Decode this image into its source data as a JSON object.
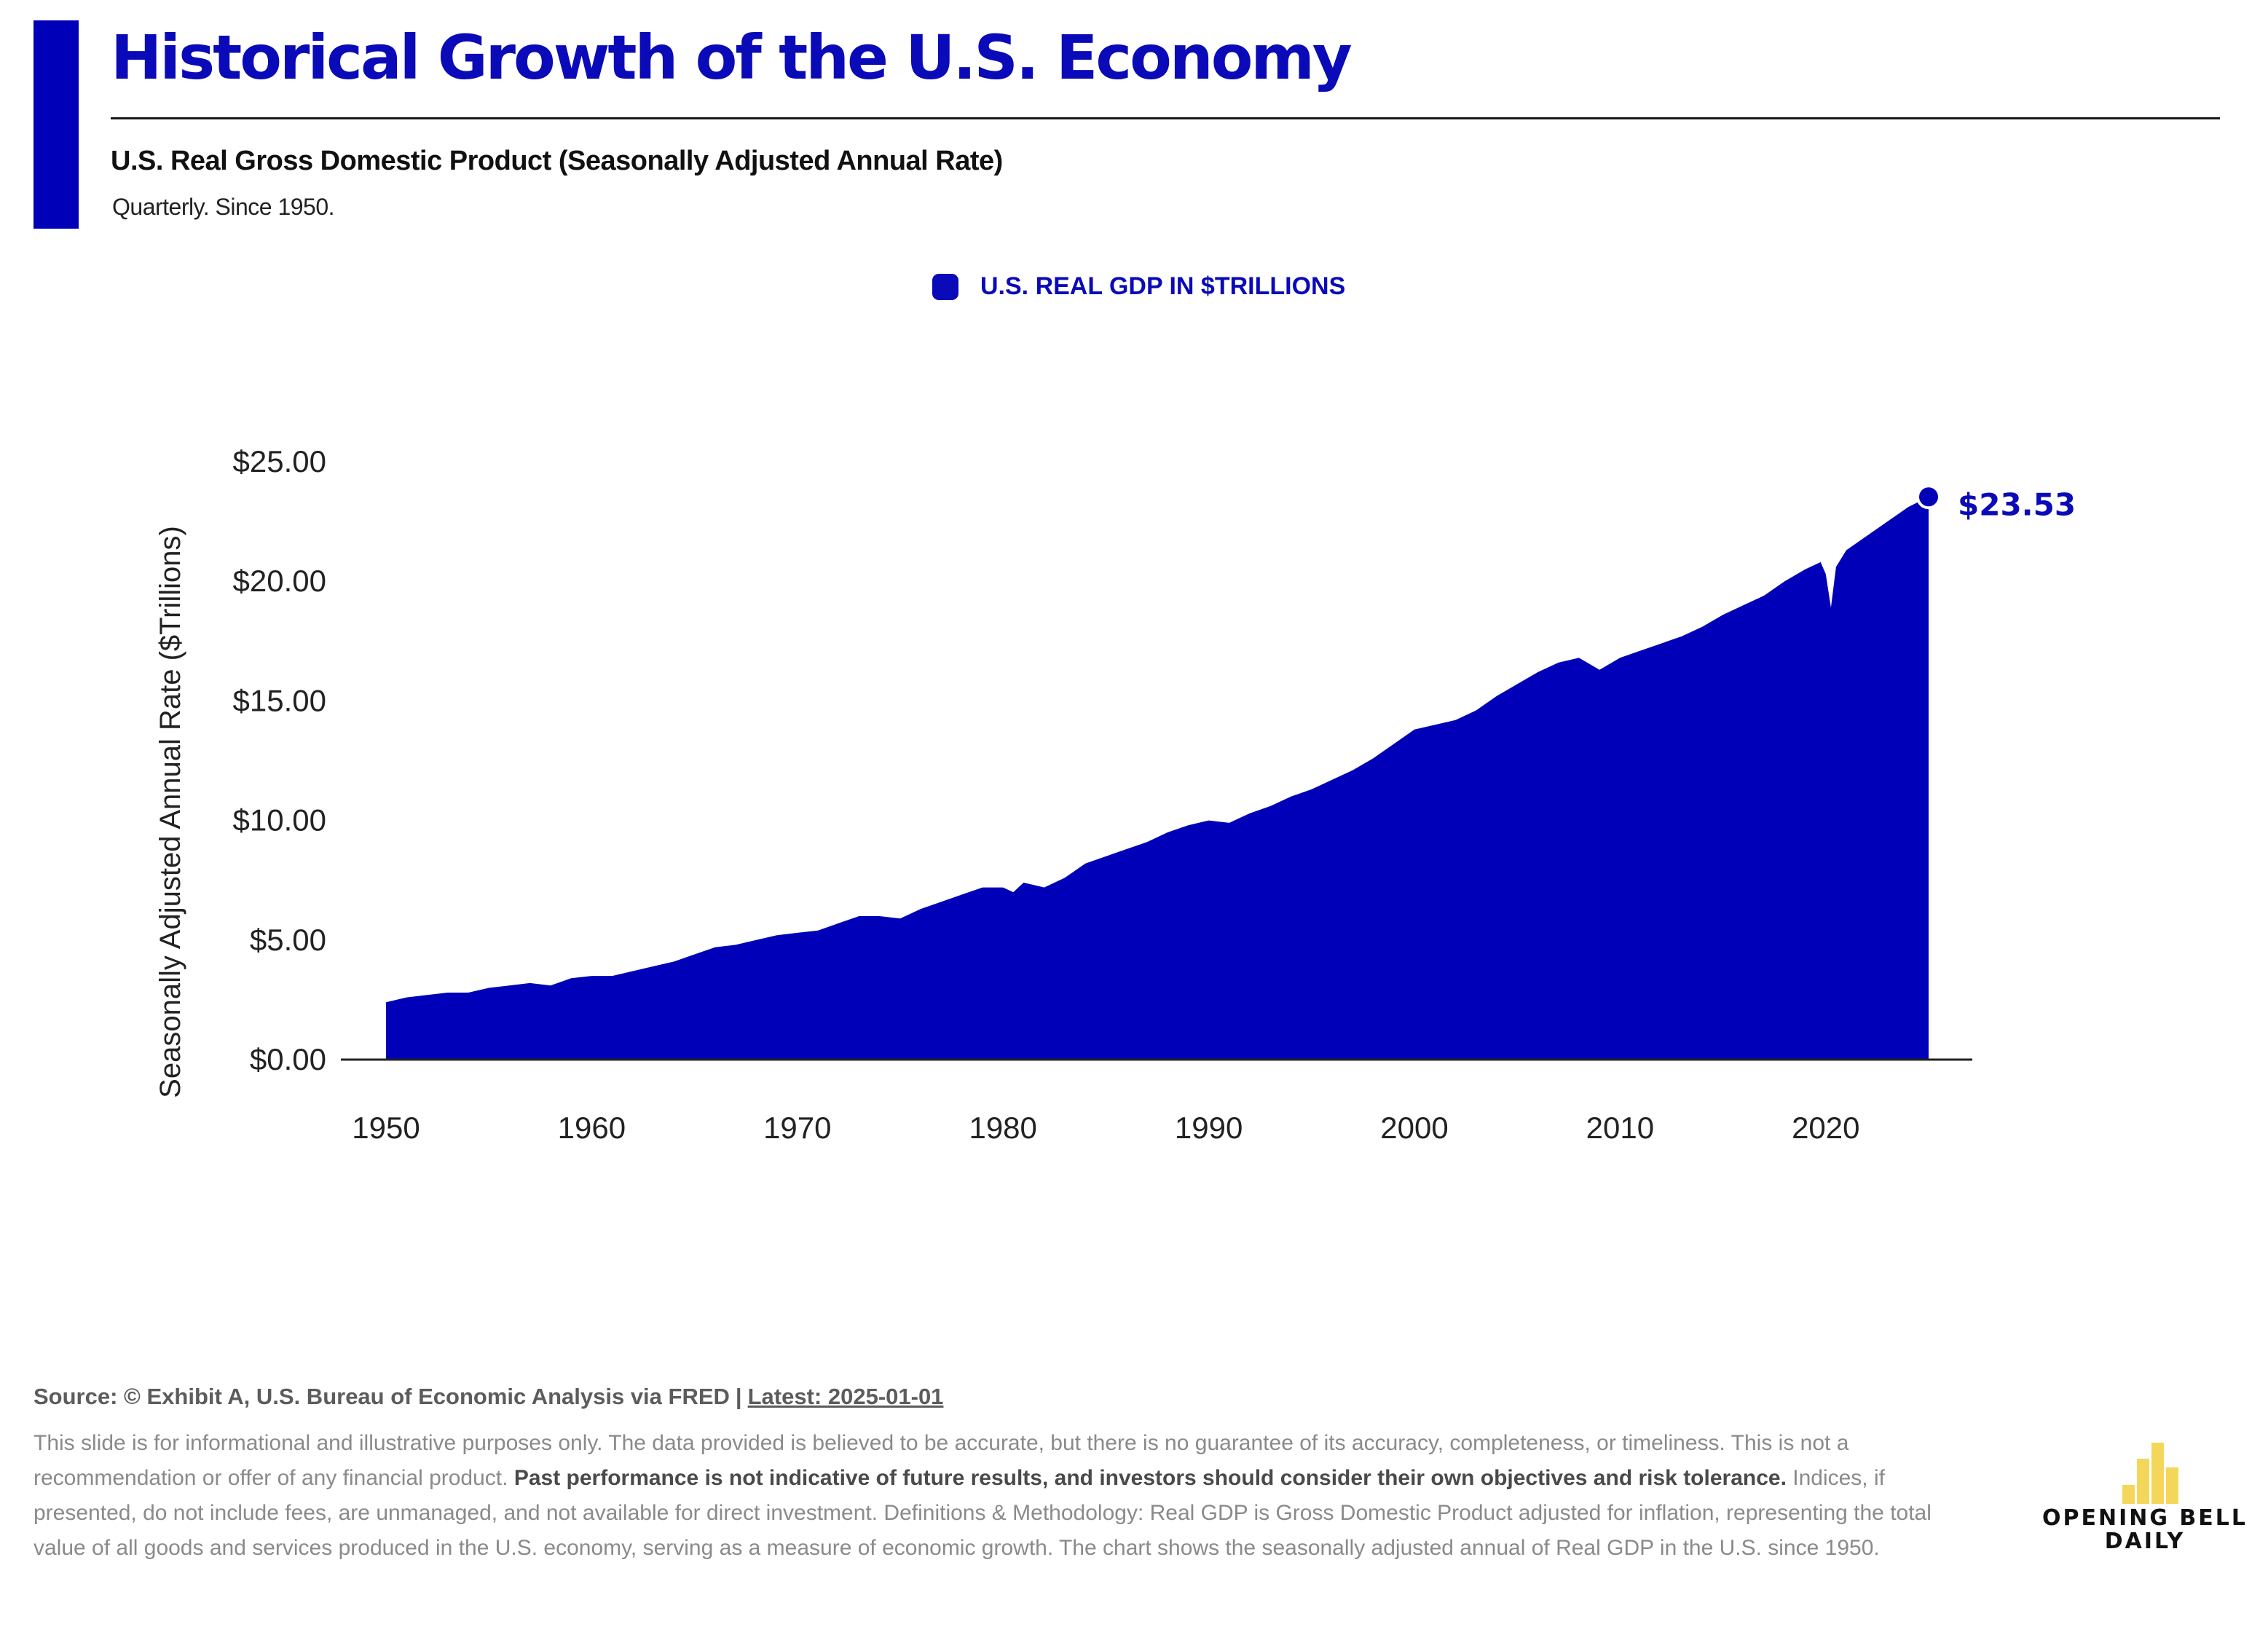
{
  "header": {
    "title": "Historical Growth of the U.S. Economy",
    "subtitle": "U.S. Real Gross Domestic Product (Seasonally Adjusted Annual Rate)",
    "note": "Quarterly. Since 1950."
  },
  "legend": {
    "label": "U.S. REAL GDP IN $TRILLIONS"
  },
  "colors": {
    "accent": "#0a0ab8",
    "area": "#0000b8",
    "logo": "#f4d75a"
  },
  "chart_data": {
    "type": "area",
    "ylabel": "Seasonally Adjusted Annual Rate ($Trillions)",
    "ylim": [
      0,
      25
    ],
    "y_ticks": [
      0,
      5,
      10,
      15,
      20,
      25
    ],
    "y_tick_labels": [
      "$0.00",
      "$5.00",
      "$10.00",
      "$15.00",
      "$20.00",
      "$25.00"
    ],
    "xlim": [
      1950,
      2025
    ],
    "x_ticks": [
      1950,
      1960,
      1970,
      1980,
      1990,
      2000,
      2010,
      2020
    ],
    "x_tick_labels": [
      "1950",
      "1960",
      "1970",
      "1980",
      "1990",
      "2000",
      "2010",
      "2020"
    ],
    "grid": false,
    "legend_position": "top-center",
    "series": [
      {
        "name": "U.S. REAL GDP IN $TRILLIONS",
        "x": [
          1950,
          1951,
          1952,
          1953,
          1954,
          1955,
          1956,
          1957,
          1958,
          1959,
          1960,
          1961,
          1962,
          1963,
          1964,
          1965,
          1966,
          1967,
          1968,
          1969,
          1970,
          1971,
          1972,
          1973,
          1974,
          1975,
          1976,
          1977,
          1978,
          1979,
          1980,
          1980.5,
          1981,
          1981.5,
          1982,
          1983,
          1984,
          1985,
          1986,
          1987,
          1988,
          1989,
          1990,
          1991,
          1992,
          1993,
          1994,
          1995,
          1996,
          1997,
          1998,
          1999,
          2000,
          2001,
          2002,
          2003,
          2004,
          2005,
          2006,
          2007,
          2008,
          2009,
          2010,
          2011,
          2012,
          2013,
          2014,
          2015,
          2016,
          2017,
          2018,
          2019,
          2019.75,
          2020,
          2020.25,
          2020.5,
          2021,
          2022,
          2023,
          2024,
          2025
        ],
        "values": [
          2.4,
          2.6,
          2.7,
          2.8,
          2.8,
          3.0,
          3.1,
          3.2,
          3.1,
          3.4,
          3.5,
          3.5,
          3.7,
          3.9,
          4.1,
          4.4,
          4.7,
          4.8,
          5.0,
          5.2,
          5.3,
          5.4,
          5.7,
          6.0,
          6.0,
          5.9,
          6.3,
          6.6,
          6.9,
          7.2,
          7.2,
          7.0,
          7.4,
          7.3,
          7.2,
          7.6,
          8.2,
          8.5,
          8.8,
          9.1,
          9.5,
          9.8,
          10.0,
          9.9,
          10.3,
          10.6,
          11.0,
          11.3,
          11.7,
          12.1,
          12.6,
          13.2,
          13.8,
          14.0,
          14.2,
          14.6,
          15.2,
          15.7,
          16.2,
          16.6,
          16.8,
          16.3,
          16.8,
          17.1,
          17.4,
          17.7,
          18.1,
          18.6,
          19.0,
          19.4,
          20.0,
          20.5,
          20.8,
          20.3,
          18.9,
          20.6,
          21.3,
          21.9,
          22.5,
          23.1,
          23.53
        ]
      }
    ],
    "end_label": "$23.53"
  },
  "footer": {
    "source": "Source: © Exhibit A, U.S. Bureau of Economic Analysis via FRED",
    "separator": "|",
    "latest": "Latest: 2025-01-01",
    "disclaimer_1": "This slide is for informational and illustrative purposes only. The data provided is believed to be accurate, but there is no guarantee of its accuracy, completeness, or timeliness. This is not a recommendation or offer of any financial product. ",
    "disclaimer_bold": "Past performance is not indicative of future results, and investors should consider their own objectives and risk tolerance.",
    "disclaimer_2": " Indices, if presented, do not include fees, are unmanaged, and not available for direct investment. Definitions & Methodology: Real GDP is Gross Domestic Product adjusted for inflation, representing the total value of all goods and services produced in the U.S. economy, serving as a measure of economic growth. The chart shows the seasonally adjusted annual of Real GDP in the U.S. since 1950."
  },
  "logo": {
    "line1": "OPENING BELL",
    "line2": "DAILY"
  }
}
